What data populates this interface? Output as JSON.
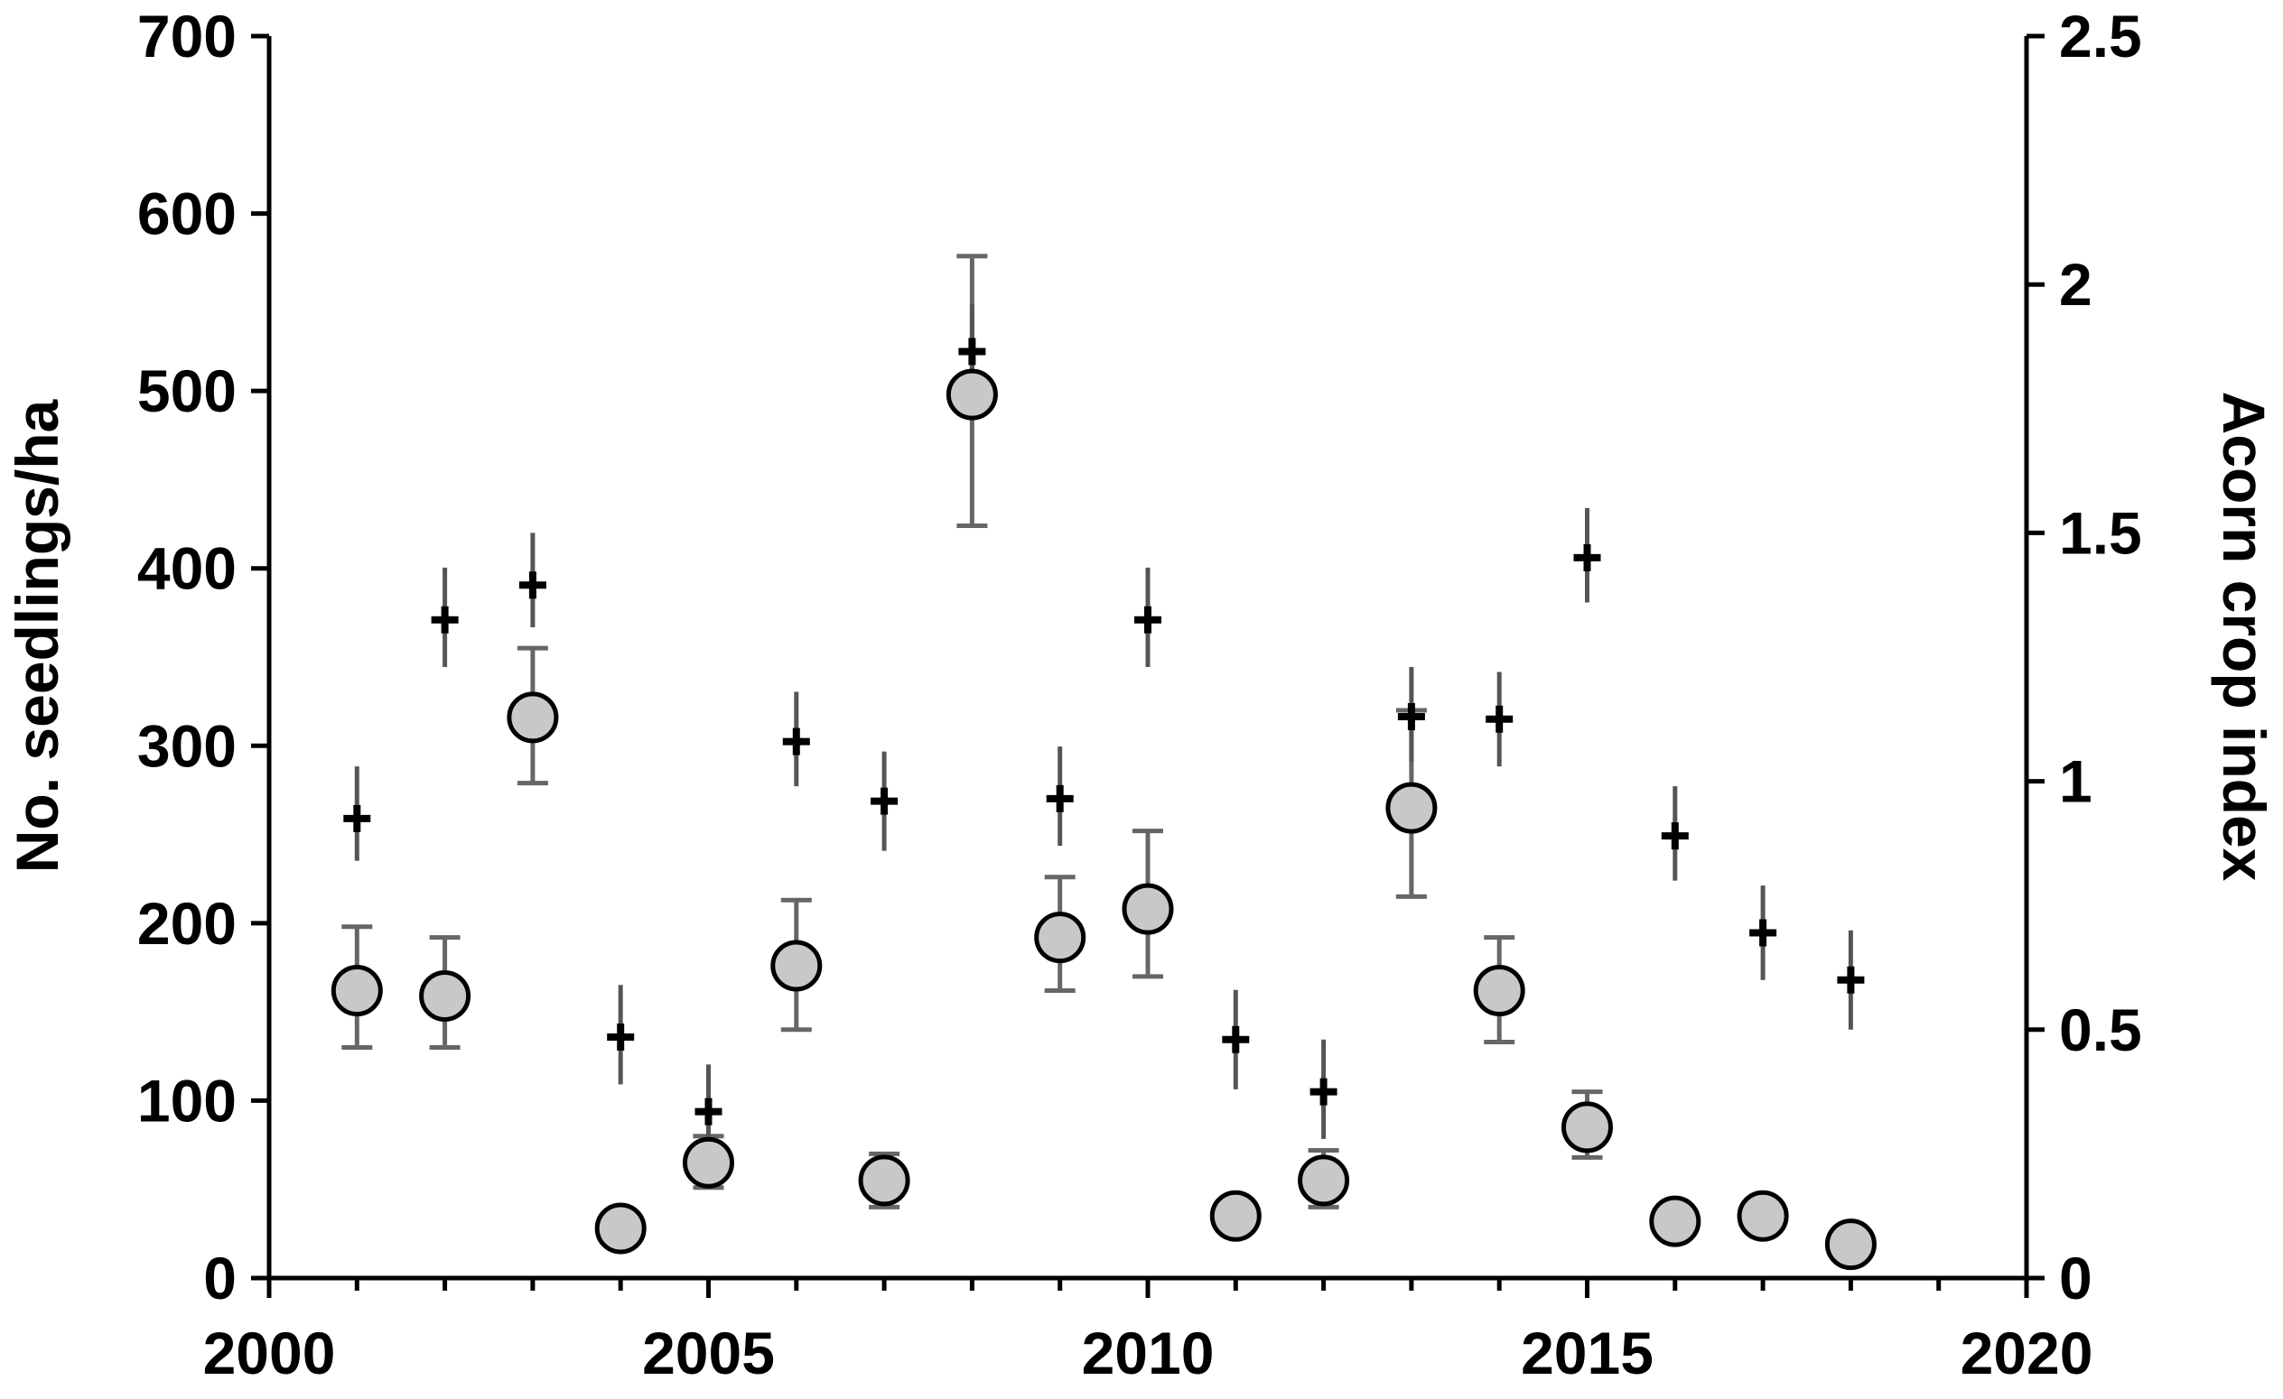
{
  "chart_data": {
    "type": "scatter",
    "title": "",
    "xlabel": "",
    "ylabel": "No. seedlings/ha",
    "y2label": "Acorn crop index",
    "xlim": [
      2000,
      2020
    ],
    "ylim": [
      0,
      700
    ],
    "y2lim": [
      0,
      2.5
    ],
    "x_ticks": [
      "2000",
      "2005",
      "2010",
      "2015",
      "2020"
    ],
    "y_ticks": [
      "0",
      "100",
      "200",
      "300",
      "400",
      "500",
      "600",
      "700"
    ],
    "y2_ticks": [
      "0",
      "0.5",
      "1",
      "1.5",
      "2",
      "2.5"
    ],
    "grid": false,
    "legend": "none",
    "series": [
      {
        "axis": "left",
        "marker": "circle",
        "color": "#c8c8c8",
        "error_color": "#666666",
        "points": [
          {
            "x": 2001,
            "y": 162,
            "err_low": 130,
            "err_high": 198
          },
          {
            "x": 2002,
            "y": 159,
            "err_low": 130,
            "err_high": 192
          },
          {
            "x": 2003,
            "y": 316,
            "err_low": 279,
            "err_high": 355
          },
          {
            "x": 2004,
            "y": 28
          },
          {
            "x": 2005,
            "y": 65,
            "err_low": 51,
            "err_high": 80
          },
          {
            "x": 2006,
            "y": 176,
            "err_low": 140,
            "err_high": 213
          },
          {
            "x": 2007,
            "y": 55,
            "err_low": 40,
            "err_high": 70
          },
          {
            "x": 2008,
            "y": 498,
            "err_low": 424,
            "err_high": 576
          },
          {
            "x": 2009,
            "y": 192,
            "err_low": 162,
            "err_high": 226
          },
          {
            "x": 2010,
            "y": 208,
            "err_low": 170,
            "err_high": 252
          },
          {
            "x": 2011,
            "y": 35
          },
          {
            "x": 2012,
            "y": 55,
            "err_low": 40,
            "err_high": 72
          },
          {
            "x": 2013,
            "y": 265,
            "err_low": 215,
            "err_high": 320
          },
          {
            "x": 2014,
            "y": 162,
            "err_low": 133,
            "err_high": 192
          },
          {
            "x": 2015,
            "y": 85,
            "err_low": 68,
            "err_high": 105
          },
          {
            "x": 2016,
            "y": 32
          },
          {
            "x": 2017,
            "y": 35
          },
          {
            "x": 2018,
            "y": 19
          }
        ]
      },
      {
        "axis": "right",
        "marker": "plus",
        "color": "#000000",
        "error_color": "#555555",
        "points": [
          {
            "x": 2001,
            "y": 0.925,
            "err_low": 0.84,
            "err_high": 1.03
          },
          {
            "x": 2002,
            "y": 1.325,
            "err_low": 1.23,
            "err_high": 1.43
          },
          {
            "x": 2003,
            "y": 1.395,
            "err_low": 1.31,
            "err_high": 1.5
          },
          {
            "x": 2004,
            "y": 0.485,
            "err_low": 0.39,
            "err_high": 0.59
          },
          {
            "x": 2005,
            "y": 0.335,
            "err_low": 0.24,
            "err_high": 0.43
          },
          {
            "x": 2006,
            "y": 1.08,
            "err_low": 0.99,
            "err_high": 1.18
          },
          {
            "x": 2007,
            "y": 0.96,
            "err_low": 0.86,
            "err_high": 1.06
          },
          {
            "x": 2008,
            "y": 1.865,
            "err_low": 1.77,
            "err_high": 1.96
          },
          {
            "x": 2009,
            "y": 0.965,
            "err_low": 0.87,
            "err_high": 1.07
          },
          {
            "x": 2010,
            "y": 1.325,
            "err_low": 1.23,
            "err_high": 1.43
          },
          {
            "x": 2011,
            "y": 0.48,
            "err_low": 0.38,
            "err_high": 0.58
          },
          {
            "x": 2012,
            "y": 0.375,
            "err_low": 0.28,
            "err_high": 0.48
          },
          {
            "x": 2013,
            "y": 1.13,
            "err_low": 1.04,
            "err_high": 1.23
          },
          {
            "x": 2014,
            "y": 1.125,
            "err_low": 1.03,
            "err_high": 1.22
          },
          {
            "x": 2015,
            "y": 1.45,
            "err_low": 1.36,
            "err_high": 1.55
          },
          {
            "x": 2016,
            "y": 0.89,
            "err_low": 0.8,
            "err_high": 0.99
          },
          {
            "x": 2017,
            "y": 0.695,
            "err_low": 0.6,
            "err_high": 0.79
          },
          {
            "x": 2018,
            "y": 0.6,
            "err_low": 0.5,
            "err_high": 0.7
          }
        ]
      }
    ]
  }
}
